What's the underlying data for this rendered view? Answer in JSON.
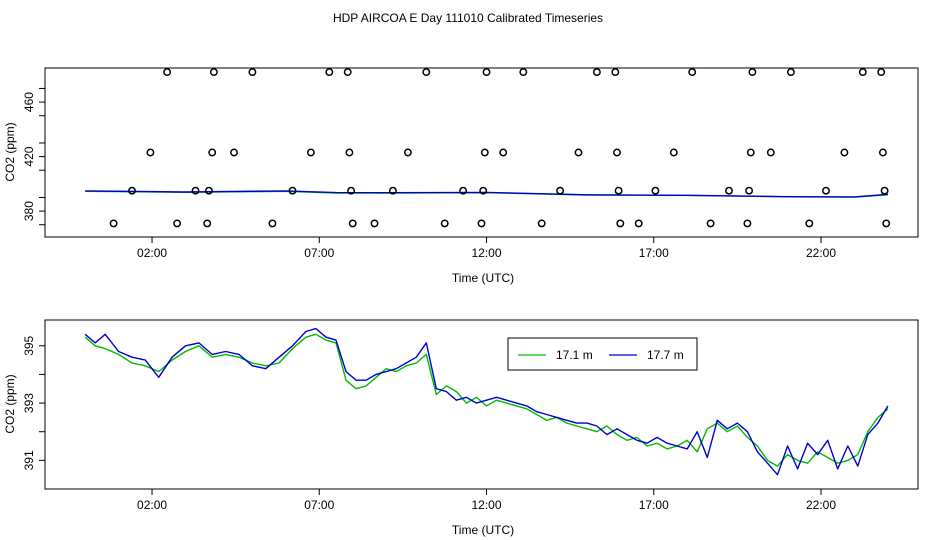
{
  "title": "HDP AIRCOA E  Day 111010  Calibrated Timeseries",
  "colors": {
    "green": "#00bb00",
    "blue": "#0000cc",
    "axis": "#000000"
  },
  "chart_data": [
    {
      "type": "scatter",
      "xlabel": "Time (UTC)",
      "ylabel": "CO2 (ppm)",
      "x_ticks": [
        2,
        7,
        12,
        17,
        22
      ],
      "x_tick_labels": [
        "02:00",
        "07:00",
        "12:00",
        "17:00",
        "22:00"
      ],
      "y_ticks": [
        380,
        420,
        460
      ],
      "y_tick_labels": [
        "380",
        "420",
        "460"
      ],
      "xlim": [
        -1.2,
        24.9
      ],
      "ylim": [
        361,
        485
      ],
      "calibration_points": [
        {
          "x": 0.85,
          "y": 371
        },
        {
          "x": 1.4,
          "y": 395
        },
        {
          "x": 1.95,
          "y": 423
        },
        {
          "x": 2.45,
          "y": 482
        },
        {
          "x": 2.75,
          "y": 371
        },
        {
          "x": 3.3,
          "y": 395
        },
        {
          "x": 3.65,
          "y": 371
        },
        {
          "x": 3.7,
          "y": 395
        },
        {
          "x": 3.8,
          "y": 423
        },
        {
          "x": 3.85,
          "y": 482
        },
        {
          "x": 4.45,
          "y": 423
        },
        {
          "x": 5.0,
          "y": 482
        },
        {
          "x": 5.6,
          "y": 371
        },
        {
          "x": 6.2,
          "y": 395
        },
        {
          "x": 6.75,
          "y": 423
        },
        {
          "x": 7.3,
          "y": 482
        },
        {
          "x": 7.85,
          "y": 482
        },
        {
          "x": 7.9,
          "y": 423
        },
        {
          "x": 7.95,
          "y": 395
        },
        {
          "x": 8.0,
          "y": 371
        },
        {
          "x": 8.65,
          "y": 371
        },
        {
          "x": 9.2,
          "y": 395
        },
        {
          "x": 9.65,
          "y": 423
        },
        {
          "x": 10.2,
          "y": 482
        },
        {
          "x": 10.75,
          "y": 371
        },
        {
          "x": 11.3,
          "y": 395
        },
        {
          "x": 11.85,
          "y": 371
        },
        {
          "x": 11.9,
          "y": 395
        },
        {
          "x": 11.95,
          "y": 423
        },
        {
          "x": 12.0,
          "y": 482
        },
        {
          "x": 12.5,
          "y": 423
        },
        {
          "x": 13.1,
          "y": 482
        },
        {
          "x": 13.65,
          "y": 371
        },
        {
          "x": 14.2,
          "y": 395
        },
        {
          "x": 14.75,
          "y": 423
        },
        {
          "x": 15.3,
          "y": 482
        },
        {
          "x": 15.85,
          "y": 482
        },
        {
          "x": 15.9,
          "y": 423
        },
        {
          "x": 15.95,
          "y": 395
        },
        {
          "x": 16.0,
          "y": 371
        },
        {
          "x": 16.55,
          "y": 371
        },
        {
          "x": 17.05,
          "y": 395
        },
        {
          "x": 17.6,
          "y": 423
        },
        {
          "x": 18.15,
          "y": 482
        },
        {
          "x": 18.7,
          "y": 371
        },
        {
          "x": 19.25,
          "y": 395
        },
        {
          "x": 19.8,
          "y": 371
        },
        {
          "x": 19.85,
          "y": 395
        },
        {
          "x": 19.9,
          "y": 423
        },
        {
          "x": 19.95,
          "y": 482
        },
        {
          "x": 20.5,
          "y": 423
        },
        {
          "x": 21.1,
          "y": 482
        },
        {
          "x": 21.65,
          "y": 371
        },
        {
          "x": 22.15,
          "y": 395
        },
        {
          "x": 22.7,
          "y": 423
        },
        {
          "x": 23.25,
          "y": 482
        },
        {
          "x": 23.8,
          "y": 482
        },
        {
          "x": 23.85,
          "y": 423
        },
        {
          "x": 23.9,
          "y": 395
        },
        {
          "x": 23.95,
          "y": 371
        }
      ],
      "series": [
        {
          "color": "green",
          "x": [
            0,
            3,
            6,
            7.5,
            9,
            12,
            15,
            18,
            21,
            23,
            24
          ],
          "y": [
            394.5,
            393.8,
            394.5,
            393.2,
            393.2,
            393.5,
            391.8,
            391.5,
            390.5,
            390.2,
            392
          ]
        },
        {
          "color": "blue",
          "x": [
            0,
            3,
            6,
            7.5,
            9,
            12,
            15,
            18,
            21,
            23,
            24
          ],
          "y": [
            394.8,
            394.0,
            394.8,
            393.6,
            393.5,
            393.7,
            392.0,
            391.6,
            390.6,
            390.4,
            392.3
          ]
        }
      ]
    },
    {
      "type": "line",
      "xlabel": "Time (UTC)",
      "ylabel": "CO2 (ppm)",
      "x_ticks": [
        2,
        7,
        12,
        17,
        22
      ],
      "x_tick_labels": [
        "02:00",
        "07:00",
        "12:00",
        "17:00",
        "22:00"
      ],
      "y_ticks": [
        391,
        393,
        395
      ],
      "y_tick_labels": [
        "391",
        "393",
        "395"
      ],
      "xlim": [
        -1.2,
        24.9
      ],
      "ylim": [
        390.0,
        395.9
      ],
      "legend_position": "top-right",
      "series": [
        {
          "name": "17.1 m",
          "color": "green",
          "x": [
            0,
            0.3,
            0.6,
            1,
            1.4,
            1.8,
            2.2,
            2.6,
            3,
            3.4,
            3.8,
            4.2,
            4.6,
            5,
            5.4,
            5.8,
            6.2,
            6.6,
            6.9,
            7.2,
            7.5,
            7.8,
            8.1,
            8.4,
            8.7,
            9,
            9.3,
            9.6,
            9.9,
            10.2,
            10.5,
            10.8,
            11.1,
            11.4,
            11.7,
            12,
            12.3,
            12.6,
            12.9,
            13.2,
            13.5,
            13.8,
            14.1,
            14.4,
            14.7,
            15,
            15.3,
            15.6,
            15.9,
            16.2,
            16.5,
            16.8,
            17.1,
            17.4,
            17.7,
            18,
            18.3,
            18.6,
            18.9,
            19.2,
            19.5,
            19.8,
            20.1,
            20.4,
            20.7,
            21,
            21.3,
            21.6,
            21.9,
            22.2,
            22.5,
            22.8,
            23.1,
            23.4,
            23.7,
            24
          ],
          "y": [
            395.3,
            395.0,
            394.9,
            394.7,
            394.4,
            394.3,
            394.1,
            394.5,
            394.8,
            395.0,
            394.6,
            394.7,
            394.6,
            394.4,
            394.3,
            394.4,
            394.9,
            395.3,
            395.4,
            395.2,
            395.1,
            393.8,
            393.5,
            393.6,
            393.9,
            394.2,
            394.1,
            394.3,
            394.4,
            394.7,
            393.3,
            393.6,
            393.4,
            393.0,
            393.2,
            392.9,
            393.1,
            393.0,
            392.9,
            392.8,
            392.6,
            392.4,
            392.5,
            392.3,
            392.2,
            392.1,
            392.0,
            392.2,
            391.9,
            391.7,
            391.8,
            391.5,
            391.6,
            391.4,
            391.5,
            391.7,
            391.3,
            392.1,
            392.3,
            392.0,
            392.2,
            391.8,
            391.5,
            391.0,
            390.8,
            391.2,
            391.0,
            390.9,
            391.3,
            391.1,
            390.9,
            391.0,
            391.2,
            392.0,
            392.5,
            392.8
          ]
        },
        {
          "name": "17.7 m",
          "color": "blue",
          "x": [
            0,
            0.3,
            0.6,
            1,
            1.4,
            1.8,
            2.2,
            2.6,
            3,
            3.4,
            3.8,
            4.2,
            4.6,
            5,
            5.4,
            5.8,
            6.2,
            6.6,
            6.9,
            7.2,
            7.5,
            7.8,
            8.1,
            8.4,
            8.7,
            9,
            9.3,
            9.6,
            9.9,
            10.2,
            10.5,
            10.8,
            11.1,
            11.4,
            11.7,
            12,
            12.3,
            12.6,
            12.9,
            13.2,
            13.5,
            13.8,
            14.1,
            14.4,
            14.7,
            15,
            15.3,
            15.6,
            15.9,
            16.2,
            16.5,
            16.8,
            17.1,
            17.4,
            17.7,
            18,
            18.3,
            18.6,
            18.9,
            19.2,
            19.5,
            19.8,
            20.1,
            20.4,
            20.7,
            21,
            21.3,
            21.6,
            21.9,
            22.2,
            22.5,
            22.8,
            23.1,
            23.4,
            23.7,
            24
          ],
          "y": [
            395.4,
            395.1,
            395.4,
            394.8,
            394.6,
            394.5,
            393.9,
            394.6,
            395.0,
            395.1,
            394.7,
            394.8,
            394.7,
            394.3,
            394.2,
            394.6,
            395.0,
            395.5,
            395.6,
            395.3,
            395.2,
            394.1,
            393.8,
            393.8,
            394.0,
            394.1,
            394.2,
            394.4,
            394.6,
            395.1,
            393.5,
            393.4,
            393.1,
            393.2,
            393.0,
            393.1,
            393.2,
            393.1,
            393.0,
            392.9,
            392.7,
            392.6,
            392.5,
            392.4,
            392.3,
            392.3,
            392.2,
            391.9,
            392.1,
            391.9,
            391.7,
            391.6,
            391.8,
            391.6,
            391.5,
            391.4,
            392.0,
            391.1,
            392.4,
            392.1,
            392.3,
            392.0,
            391.3,
            390.9,
            390.5,
            391.5,
            390.7,
            391.6,
            391.2,
            391.7,
            390.7,
            391.5,
            390.8,
            391.9,
            392.3,
            392.9
          ]
        }
      ]
    }
  ]
}
